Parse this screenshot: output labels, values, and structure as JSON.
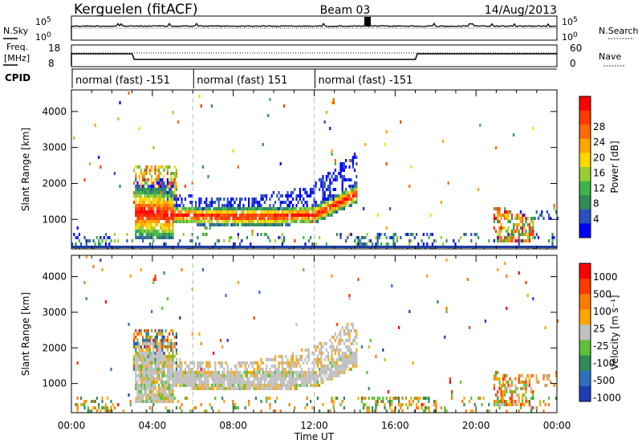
{
  "header": {
    "station": "Kerguelen (fitACF)",
    "beam": "Beam 03",
    "date": "14/Aug/2013"
  },
  "params": {
    "nsky_label": "N.Sky",
    "nsearch_label": "N.Search",
    "freq_label_1": "Freq.",
    "freq_label_2": "[MHz]",
    "nave_label": "Nave",
    "cpid_label": "CPID",
    "nsky_ticks": [
      "10^5",
      "10^0"
    ],
    "nsearch_ticks": [
      "10^5",
      "10^0"
    ],
    "freq_ticks": [
      "18",
      "8"
    ],
    "nave_ticks": [
      "60",
      "0"
    ],
    "cpid_segments": [
      "normal (fast) -151",
      "normal (fast) 151",
      "normal (fast) -151"
    ]
  },
  "chart_data": [
    {
      "type": "heatmap",
      "name": "power",
      "ylabel": "Slant Range [km]",
      "xlabel": "",
      "ylim": [
        180,
        4600
      ],
      "y_ticks": [
        "1000",
        "2000",
        "3000",
        "4000"
      ],
      "colorbar_label": "Power [dB]",
      "colorbar_ticks": [
        "4",
        "8",
        "12",
        "16",
        "20",
        "24",
        "28"
      ],
      "colorbar_colors": [
        "#0000ff",
        "#2a52be",
        "#2e8b57",
        "#3cb44b",
        "#9acd32",
        "#ffd700",
        "#ffa500",
        "#ff6a00",
        "#ff3a00",
        "#ff0000"
      ]
    },
    {
      "type": "heatmap",
      "name": "velocity",
      "ylabel": "Slant Range [km]",
      "xlabel": "Time UT",
      "ylim": [
        180,
        4600
      ],
      "x_ticks": [
        "00:00",
        "04:00",
        "08:00",
        "12:00",
        "16:00",
        "20:00",
        "00:00"
      ],
      "y_ticks": [
        "1000",
        "2000",
        "3000",
        "4000"
      ],
      "colorbar_label": "Velocity [m s⁻¹]",
      "colorbar_ticks": [
        "1000",
        "500",
        "100",
        "25",
        "-25",
        "-100",
        "-500",
        "-1000"
      ],
      "colorbar_colors": [
        "#1e3fb4",
        "#2e6fbf",
        "#2e8b57",
        "#5fbf3a",
        "#c0c0c0",
        "#ffa500",
        "#ff7a00",
        "#ff3a00",
        "#ff0000"
      ]
    }
  ]
}
